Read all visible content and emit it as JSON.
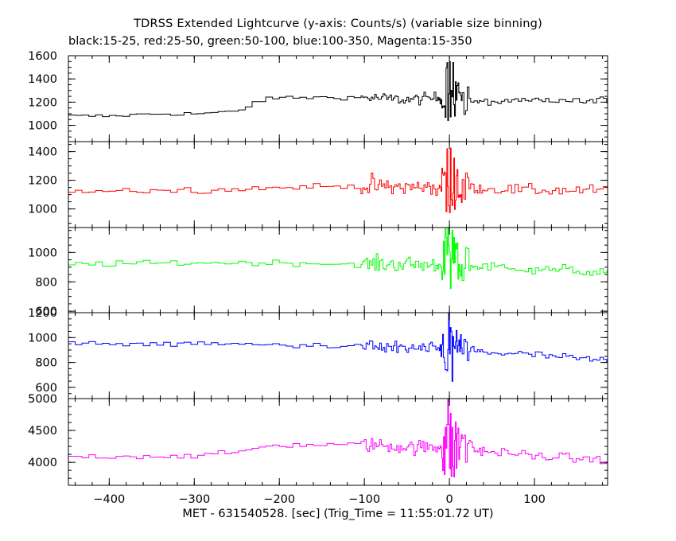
{
  "title": "TDRSS Extended Lightcurve (y-axis: Counts/s) (variable size binning)",
  "subtitle": "black:15-25, red:25-50, green:50-100, blue:100-350, Magenta:15-350",
  "xlabel": "MET - 631540528. [sec] (Trig_Time = 11:55:01.72 UT)",
  "chart_data": [
    {
      "type": "line",
      "name": "black",
      "energy_band": "15-25",
      "color": "#000000",
      "xlim": [
        -448,
        186
      ],
      "ylim": [
        860,
        1600
      ],
      "yticks": [
        1000,
        1200,
        1400,
        1600
      ],
      "baseline_x": [
        -448,
        -400,
        -350,
        -300,
        -250,
        -230,
        -200,
        -150,
        -100,
        -50,
        -10,
        10,
        30,
        100,
        186
      ],
      "baseline_y": [
        1080,
        1080,
        1100,
        1100,
        1120,
        1210,
        1240,
        1240,
        1240,
        1220,
        1240,
        1250,
        1200,
        1210,
        1210
      ],
      "burst_amplitude": 200,
      "noise": 35
    },
    {
      "type": "line",
      "name": "red",
      "energy_band": "25-50",
      "color": "#ff0000",
      "xlim": [
        -448,
        186
      ],
      "ylim": [
        870,
        1470
      ],
      "yticks": [
        1000,
        1200,
        1400
      ],
      "baseline_x": [
        -448,
        -300,
        -200,
        -100,
        -50,
        0,
        100,
        186
      ],
      "baseline_y": [
        1130,
        1130,
        1150,
        1160,
        1150,
        1150,
        1130,
        1130
      ],
      "burst_amplitude": 180,
      "noise": 45
    },
    {
      "type": "line",
      "name": "green",
      "energy_band": "50-100",
      "color": "#00ff00",
      "xlim": [
        -448,
        186
      ],
      "ylim": [
        590,
        1170
      ],
      "yticks": [
        600,
        800,
        1000
      ],
      "baseline_x": [
        -448,
        -300,
        -200,
        -100,
        -50,
        0,
        100,
        186
      ],
      "baseline_y": [
        920,
        930,
        930,
        920,
        920,
        910,
        890,
        860
      ],
      "burst_amplitude": 180,
      "noise": 40
    },
    {
      "type": "line",
      "name": "blue",
      "energy_band": "100-350",
      "color": "#0000ff",
      "xlim": [
        -448,
        186
      ],
      "ylim": [
        510,
        1200
      ],
      "yticks": [
        600,
        800,
        1000,
        1200
      ],
      "baseline_x": [
        -448,
        -300,
        -200,
        -100,
        -50,
        0,
        100,
        186
      ],
      "baseline_y": [
        950,
        950,
        940,
        930,
        910,
        900,
        860,
        810
      ],
      "burst_amplitude": 220,
      "noise": 40
    },
    {
      "type": "line",
      "name": "Magenta",
      "energy_band": "15-350",
      "color": "#ff00ff",
      "xlim": [
        -448,
        186
      ],
      "ylim": [
        3640,
        5000
      ],
      "yticks": [
        4000,
        4500,
        5000
      ],
      "baseline_x": [
        -448,
        -300,
        -250,
        -220,
        -150,
        -100,
        -50,
        0,
        100,
        186
      ],
      "baseline_y": [
        4090,
        4100,
        4160,
        4260,
        4280,
        4280,
        4240,
        4230,
        4100,
        4030
      ],
      "burst_amplitude": 520,
      "noise": 80
    }
  ],
  "x_axis": {
    "xlim": [
      -448,
      186
    ],
    "ticks": [
      -400,
      -300,
      -200,
      -100,
      0,
      100
    ],
    "minor_step": 20
  },
  "binning": {
    "coarse_bin_until": -105,
    "coarse_bin": 8,
    "fine_bin": 1,
    "fine_until": 15,
    "medium_bin": 4,
    "medium_until": 40
  }
}
